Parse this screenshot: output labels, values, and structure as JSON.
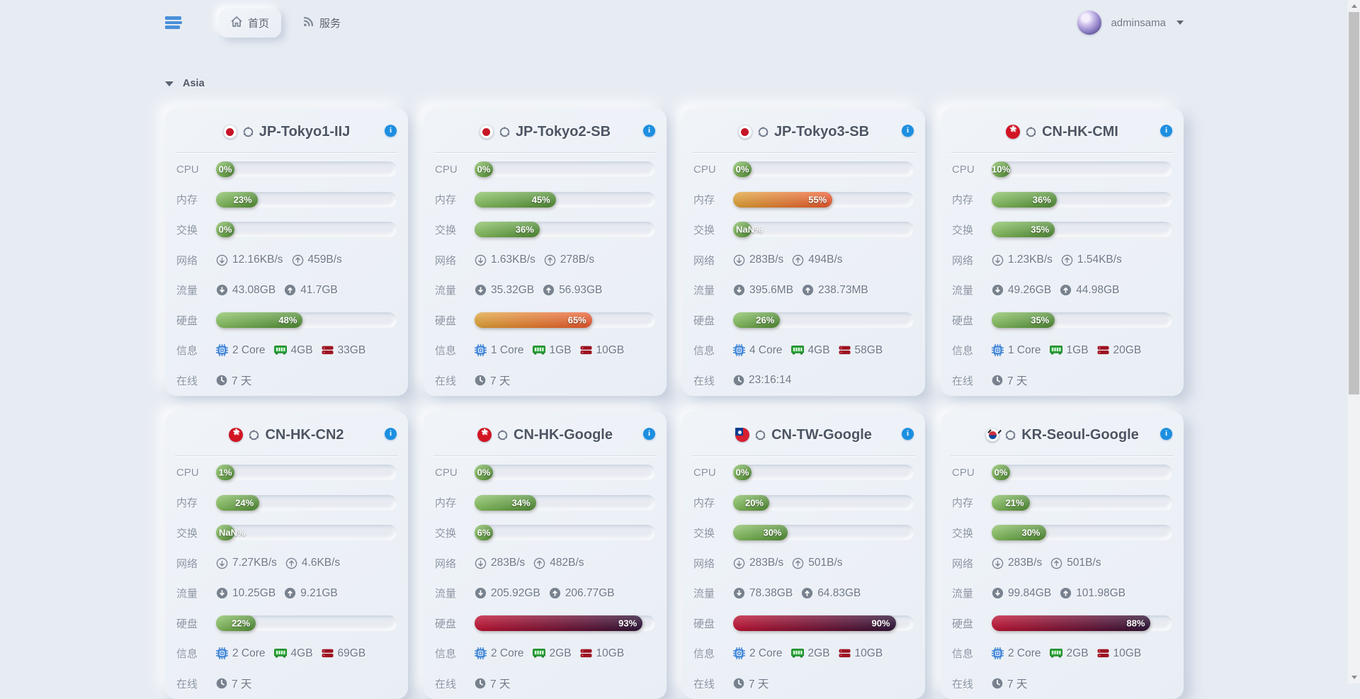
{
  "topbar": {
    "tabs": [
      {
        "label": "首页"
      },
      {
        "label": "服务"
      }
    ],
    "active_tab": "首页",
    "user_name": "adminsama"
  },
  "section_label": "Asia",
  "row_labels": {
    "cpu": "CPU",
    "mem": "内存",
    "swap": "交换",
    "net": "网络",
    "traffic": "流量",
    "disk": "硬盘",
    "info": "信息",
    "online": "在线"
  },
  "colors": {
    "page_bg": "#e7ecf3",
    "accent_blue": "#1d8fe0",
    "menu_icon_blue": "#4a90d9",
    "bar_green": [
      "#86c05f",
      "#4d8a31"
    ],
    "bar_orange": [
      "#dfa033",
      "#e8552a"
    ],
    "bar_red": [
      "#c01031",
      "#2d1136"
    ],
    "cpu_icon_blue": "#4185d6",
    "ram_icon_green": "#2fa83c",
    "hdd_icon_red": "#9d1220"
  },
  "servers": [
    {
      "name": "JP-Tokyo1-IIJ",
      "flag": "jp",
      "os": "ubuntu",
      "cpu": {
        "pct": 0,
        "label": "0%"
      },
      "mem": {
        "pct": 23,
        "label": "23%"
      },
      "swap": {
        "pct": 0,
        "label": "0%"
      },
      "net_down": "12.16KB/s",
      "net_up": "459B/s",
      "traffic_down": "43.08GB",
      "traffic_up": "41.7GB",
      "disk": {
        "pct": 48,
        "label": "48%"
      },
      "cores": "2 Core",
      "ram": "4GB",
      "storage": "33GB",
      "online": "7 天"
    },
    {
      "name": "JP-Tokyo2-SB",
      "flag": "jp",
      "os": "ubuntu",
      "cpu": {
        "pct": 0,
        "label": "0%"
      },
      "mem": {
        "pct": 45,
        "label": "45%"
      },
      "swap": {
        "pct": 36,
        "label": "36%"
      },
      "net_down": "1.63KB/s",
      "net_up": "278B/s",
      "traffic_down": "35.32GB",
      "traffic_up": "56.93GB",
      "disk": {
        "pct": 65,
        "label": "65%"
      },
      "cores": "1 Core",
      "ram": "1GB",
      "storage": "10GB",
      "online": "7 天"
    },
    {
      "name": "JP-Tokyo3-SB",
      "flag": "jp",
      "os": "ubuntu",
      "cpu": {
        "pct": 0,
        "label": "0%"
      },
      "mem": {
        "pct": 55,
        "label": "55%"
      },
      "swap": {
        "pct": null,
        "label": "NaN%"
      },
      "net_down": "283B/s",
      "net_up": "494B/s",
      "traffic_down": "395.6MB",
      "traffic_up": "238.73MB",
      "disk": {
        "pct": 26,
        "label": "26%"
      },
      "cores": "4 Core",
      "ram": "4GB",
      "storage": "58GB",
      "online": "23:16:14"
    },
    {
      "name": "CN-HK-CMI",
      "flag": "hk",
      "os": "ubuntu",
      "cpu": {
        "pct": 10,
        "label": "10%"
      },
      "mem": {
        "pct": 36,
        "label": "36%"
      },
      "swap": {
        "pct": 35,
        "label": "35%"
      },
      "net_down": "1.23KB/s",
      "net_up": "1.54KB/s",
      "traffic_down": "49.26GB",
      "traffic_up": "44.98GB",
      "disk": {
        "pct": 35,
        "label": "35%"
      },
      "cores": "1 Core",
      "ram": "1GB",
      "storage": "20GB",
      "online": "7 天"
    },
    {
      "name": "CN-HK-CN2",
      "flag": "hk",
      "os": "ubuntu",
      "cpu": {
        "pct": 1,
        "label": "1%"
      },
      "mem": {
        "pct": 24,
        "label": "24%"
      },
      "swap": {
        "pct": null,
        "label": "NaN%"
      },
      "net_down": "7.27KB/s",
      "net_up": "4.6KB/s",
      "traffic_down": "10.25GB",
      "traffic_up": "9.21GB",
      "disk": {
        "pct": 22,
        "label": "22%"
      },
      "cores": "2 Core",
      "ram": "4GB",
      "storage": "69GB",
      "online": "7 天"
    },
    {
      "name": "CN-HK-Google",
      "flag": "hk",
      "os": "ubuntu",
      "cpu": {
        "pct": 0,
        "label": "0%"
      },
      "mem": {
        "pct": 34,
        "label": "34%"
      },
      "swap": {
        "pct": 6,
        "label": "6%"
      },
      "net_down": "283B/s",
      "net_up": "482B/s",
      "traffic_down": "205.92GB",
      "traffic_up": "206.77GB",
      "disk": {
        "pct": 93,
        "label": "93%"
      },
      "cores": "2 Core",
      "ram": "2GB",
      "storage": "10GB",
      "online": "7 天"
    },
    {
      "name": "CN-TW-Google",
      "flag": "tw",
      "os": "ubuntu",
      "cpu": {
        "pct": 0,
        "label": "0%"
      },
      "mem": {
        "pct": 20,
        "label": "20%"
      },
      "swap": {
        "pct": 30,
        "label": "30%"
      },
      "net_down": "283B/s",
      "net_up": "501B/s",
      "traffic_down": "78.38GB",
      "traffic_up": "64.83GB",
      "disk": {
        "pct": 90,
        "label": "90%"
      },
      "cores": "2 Core",
      "ram": "2GB",
      "storage": "10GB",
      "online": "7 天"
    },
    {
      "name": "KR-Seoul-Google",
      "flag": "kr",
      "os": "ubuntu",
      "cpu": {
        "pct": 0,
        "label": "0%"
      },
      "mem": {
        "pct": 21,
        "label": "21%"
      },
      "swap": {
        "pct": 30,
        "label": "30%"
      },
      "net_down": "283B/s",
      "net_up": "501B/s",
      "traffic_down": "99.84GB",
      "traffic_up": "101.98GB",
      "disk": {
        "pct": 88,
        "label": "88%"
      },
      "cores": "2 Core",
      "ram": "2GB",
      "storage": "10GB",
      "online": "7 天"
    }
  ]
}
